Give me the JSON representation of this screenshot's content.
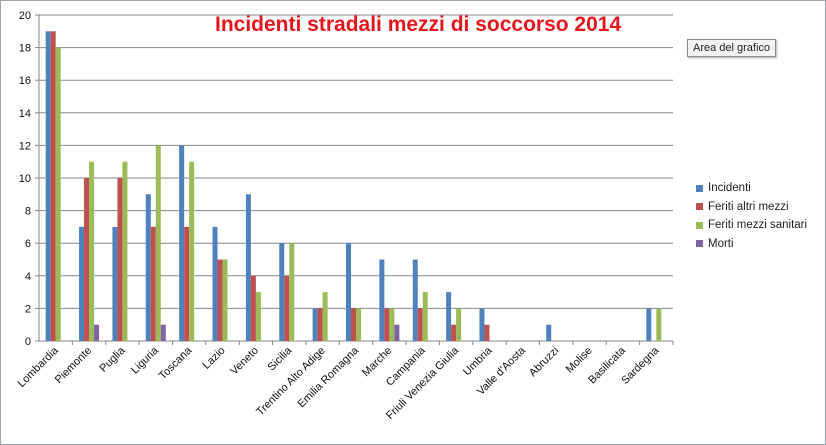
{
  "chart_data": {
    "type": "bar",
    "title": "Incidenti stradali mezzi di soccorso 2014",
    "categories": [
      "Lombardia",
      "Piemonte",
      "Puglia",
      "Liguria",
      "Toscana",
      "Lazio",
      "Veneto",
      "Sicilia",
      "Trentino Alto Adige",
      "Emilia Romagna",
      "Marche",
      "Campania",
      "Friuli Venezia Giulia",
      "Umbria",
      "Valle d'Aosta",
      "Abruzzi",
      "Molise",
      "Basilicata",
      "Sardegna"
    ],
    "series": [
      {
        "name": "Incidenti",
        "color": "#4f81bd",
        "values": [
          19,
          7,
          7,
          9,
          12,
          7,
          9,
          6,
          2,
          6,
          5,
          5,
          3,
          2,
          0,
          1,
          0,
          0,
          2
        ]
      },
      {
        "name": "Feriti altri mezzi",
        "color": "#c0504d",
        "values": [
          19,
          10,
          10,
          7,
          7,
          5,
          4,
          4,
          2,
          2,
          2,
          2,
          1,
          1,
          0,
          0,
          0,
          0,
          0
        ]
      },
      {
        "name": "Feriti mezzi sanitari",
        "color": "#9bbb59",
        "values": [
          18,
          11,
          11,
          12,
          11,
          5,
          3,
          6,
          3,
          2,
          2,
          3,
          2,
          0,
          0,
          0,
          0,
          0,
          2
        ]
      },
      {
        "name": "Morti",
        "color": "#8064a2",
        "values": [
          0,
          1,
          0,
          1,
          0,
          0,
          0,
          0,
          0,
          0,
          1,
          0,
          0,
          0,
          0,
          0,
          0,
          0,
          0
        ]
      }
    ],
    "ylim": [
      0,
      20
    ],
    "yticks": [
      0,
      2,
      4,
      6,
      8,
      10,
      12,
      14,
      16,
      18,
      20
    ],
    "grid": true,
    "legend_position": "right"
  },
  "ui": {
    "tooltip": "Area del grafico"
  }
}
